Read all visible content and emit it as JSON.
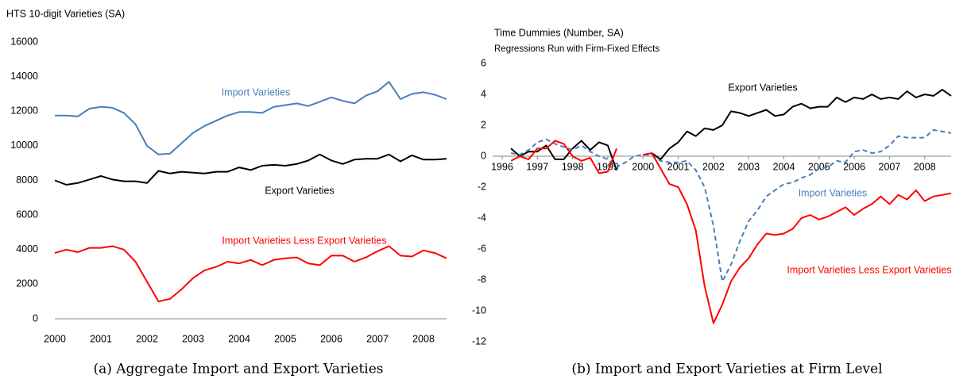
{
  "chart_data": [
    {
      "type": "line",
      "ylabel": "HTS 10-digit Varieties (SA)",
      "caption": "(a) Aggregate Import and Export Varieties",
      "categories": [
        "2000",
        null,
        null,
        null,
        "2001",
        null,
        null,
        null,
        "2002",
        null,
        null,
        null,
        "2003",
        null,
        null,
        null,
        "2004",
        null,
        null,
        null,
        "2005",
        null,
        null,
        null,
        "2006",
        null,
        null,
        null,
        "2007",
        null,
        null,
        null,
        "2008",
        null,
        null
      ],
      "ylim": [
        0,
        16000
      ],
      "yticks": [
        0,
        2000,
        4000,
        6000,
        8000,
        10000,
        12000,
        14000,
        16000
      ],
      "series": [
        {
          "name": "Import Varieties",
          "color": "#4a7ebb",
          "values": [
            11750,
            11750,
            11700,
            12150,
            12250,
            12200,
            11900,
            11250,
            10000,
            9500,
            9550,
            10150,
            10750,
            11150,
            11450,
            11750,
            11950,
            11950,
            11900,
            12250,
            12350,
            12450,
            12300,
            12550,
            12800,
            12600,
            12450,
            12900,
            13150,
            13700,
            12700,
            13000,
            13100,
            12950,
            12700
          ]
        },
        {
          "name": "Export Varieties",
          "color": "#000000",
          "values": [
            8000,
            7750,
            7850,
            8050,
            8250,
            8050,
            7950,
            7950,
            7850,
            8550,
            8400,
            8500,
            8450,
            8400,
            8500,
            8500,
            8750,
            8600,
            8850,
            8900,
            8850,
            8950,
            9150,
            9500,
            9150,
            8950,
            9200,
            9250,
            9250,
            9500,
            9100,
            9450,
            9200,
            9200,
            9250
          ]
        },
        {
          "name": "Import Varieties Less Export Varieties",
          "color": "#ff0000",
          "values": [
            3800,
            4000,
            3850,
            4100,
            4100,
            4200,
            4000,
            3300,
            2150,
            1000,
            1150,
            1700,
            2350,
            2800,
            3000,
            3300,
            3200,
            3400,
            3100,
            3400,
            3500,
            3550,
            3200,
            3100,
            3650,
            3650,
            3300,
            3550,
            3900,
            4200,
            3650,
            3600,
            3950,
            3800,
            3500
          ]
        }
      ]
    },
    {
      "type": "line",
      "title": "Time Dummies (Number, SA)",
      "subtitle": "Regressions Run with Firm-Fixed Effects",
      "caption": "(b) Import and Export Varieties at Firm Level",
      "x": [
        1996.25,
        1996.5,
        1996.75,
        1997,
        1997.25,
        1997.5,
        1997.75,
        1998,
        1998.25,
        1998.5,
        1998.75,
        1999,
        1999.25,
        1999.5,
        1999.75,
        2000,
        2000.25,
        2000.5,
        2000.75,
        2001,
        2001.25,
        2001.5,
        2001.75,
        2002,
        2002.25,
        2002.5,
        2002.75,
        2003,
        2003.25,
        2003.5,
        2003.75,
        2004,
        2004.25,
        2004.5,
        2004.75,
        2005,
        2005.25,
        2005.5,
        2005.75,
        2006,
        2006.25,
        2006.5,
        2006.75,
        2007,
        2007.25,
        2007.5,
        2007.75,
        2008,
        2008.25,
        2008.5,
        2008.75
      ],
      "xlim": [
        1996,
        2008.75
      ],
      "xticks": [
        1996,
        1997,
        1998,
        1999,
        2000,
        2001,
        2002,
        2003,
        2004,
        2005,
        2006,
        2007,
        2008
      ],
      "ylim": [
        -12,
        6
      ],
      "yticks": [
        -12,
        -10,
        -8,
        -6,
        -4,
        -2,
        0,
        2,
        4,
        6
      ],
      "series": [
        {
          "name": "Export Varieties",
          "color": "#000000",
          "line_style": "solid",
          "values": [
            0.5,
            0.0,
            0.3,
            0.3,
            0.7,
            -0.2,
            -0.2,
            0.5,
            1.0,
            0.4,
            0.9,
            0.7,
            -0.9,
            null,
            null,
            null,
            0.2,
            -0.2,
            0.5,
            0.9,
            1.6,
            1.3,
            1.8,
            1.7,
            2.0,
            2.9,
            2.8,
            2.6,
            2.8,
            3.0,
            2.6,
            2.7,
            3.2,
            3.4,
            3.1,
            3.2,
            3.2,
            3.8,
            3.5,
            3.8,
            3.7,
            4.0,
            3.7,
            3.8,
            3.7,
            4.2,
            3.8,
            4.0,
            3.9,
            4.3,
            3.9
          ]
        },
        {
          "name": "Import Varieties",
          "color": "#4a7ebb",
          "line_style": "dashed",
          "values": [
            0.2,
            0.1,
            0.4,
            0.9,
            1.1,
            0.8,
            0.6,
            0.4,
            0.7,
            0.3,
            0.0,
            -0.2,
            -0.7,
            -0.4,
            0.0,
            0.1,
            0.1,
            -0.3,
            -0.4,
            -0.4,
            -0.3,
            -0.9,
            -2.0,
            -4.5,
            -8.1,
            -7.0,
            -5.5,
            -4.2,
            -3.5,
            -2.6,
            -2.2,
            -1.8,
            -1.7,
            -1.4,
            -1.2,
            -0.8,
            -0.7,
            -0.3,
            -0.4,
            0.3,
            0.4,
            0.2,
            0.3,
            0.7,
            1.3,
            1.2,
            1.2,
            1.2,
            1.7,
            1.6,
            1.5
          ]
        },
        {
          "name": "Import Varieties Less Export Varieties",
          "color": "#ff0000",
          "line_style": "solid",
          "values": [
            -0.3,
            0.0,
            -0.2,
            0.5,
            0.5,
            1.0,
            0.8,
            0.0,
            -0.3,
            -0.1,
            -1.1,
            -1.0,
            0.5,
            null,
            null,
            0.1,
            0.2,
            -0.8,
            -1.8,
            -2.0,
            -3.1,
            -4.8,
            -8.4,
            -10.8,
            -9.6,
            -8.1,
            -7.2,
            -6.6,
            -5.7,
            -5.0,
            -5.1,
            -5.0,
            -4.7,
            -4.0,
            -3.8,
            -4.1,
            -3.9,
            -3.6,
            -3.3,
            -3.8,
            -3.4,
            -3.1,
            -2.6,
            -3.1,
            -2.5,
            -2.8,
            -2.2,
            -2.9,
            -2.6,
            -2.5,
            -2.4
          ]
        }
      ]
    }
  ]
}
